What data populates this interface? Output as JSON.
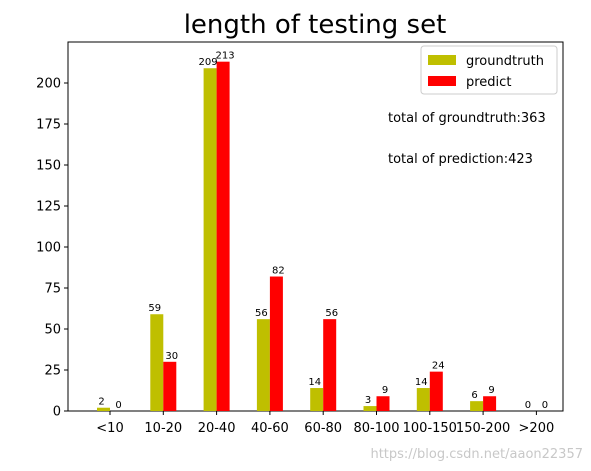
{
  "chart_data": {
    "type": "bar",
    "title": "length of testing set",
    "xlabel": "",
    "ylabel": "",
    "categories": [
      "<10",
      "10-20",
      "20-40",
      "40-60",
      "60-80",
      "80-100",
      "100-150",
      "150-200",
      ">200"
    ],
    "series": [
      {
        "name": "groundtruth",
        "color": "#bfbf00",
        "values": [
          2,
          59,
          209,
          56,
          14,
          3,
          14,
          6,
          0
        ]
      },
      {
        "name": "predict",
        "color": "#ff0000",
        "values": [
          0,
          30,
          213,
          82,
          56,
          9,
          24,
          9,
          0
        ]
      }
    ],
    "ylim": [
      0,
      225
    ],
    "yticks": [
      0,
      25,
      50,
      75,
      100,
      125,
      150,
      175,
      200
    ],
    "legend_position": "top-right",
    "grid": false,
    "annotations": [
      "total of groundtruth:363",
      "total of prediction:423"
    ]
  },
  "watermark": "https://blog.csdn.net/aaon22357"
}
